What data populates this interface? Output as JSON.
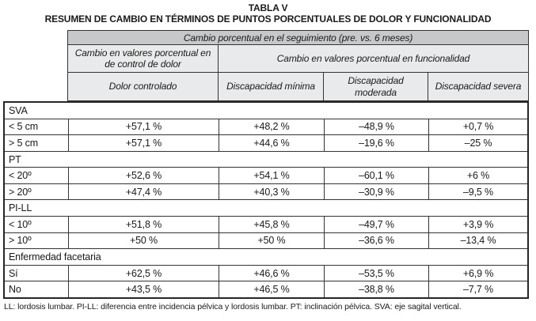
{
  "page": {
    "title": "TABLA V",
    "subtitle": "RESUMEN DE CAMBIO EN TÉRMINOS DE PUNTOS PORCENTUALES DE DOLOR Y FUNCIONALIDAD"
  },
  "table": {
    "banner": "Cambio porcentual en el seguimiento (pre. vs. 6 meses)",
    "group_headers": [
      "Cambio en valores porcentual en de control de dolor",
      "Cambio en valores porcentual en funcionalidad"
    ],
    "column_headers": [
      "Dolor controlado",
      "Discapacidad mínima",
      "Discapacidad moderada",
      "Discapacidad severa"
    ],
    "sections": [
      {
        "label": "SVA",
        "rows": [
          {
            "label": "< 5 cm",
            "values": [
              "+57,1 %",
              "+48,2 %",
              "–48,9 %",
              "+0,7 %"
            ]
          },
          {
            "label": "> 5 cm",
            "values": [
              "+57,1 %",
              "+44,6 %",
              "–19,6 %",
              "–25 %"
            ]
          }
        ]
      },
      {
        "label": "PT",
        "rows": [
          {
            "label": "< 20º",
            "values": [
              "+52,6 %",
              "+54,1 %",
              "–60,1 %",
              "+6 %"
            ]
          },
          {
            "label": "> 20º",
            "values": [
              "+47,4 %",
              "+40,3 %",
              "–30,9 %",
              "–9,5 %"
            ]
          }
        ]
      },
      {
        "label": "PI-LL",
        "rows": [
          {
            "label": "< 10º",
            "values": [
              "+51,8 %",
              "+45,8 %",
              "–49,7 %",
              "+3,9 %"
            ]
          },
          {
            "label": "> 10º",
            "values": [
              "+50 %",
              "+50 %",
              "–36,6 %",
              "–13,4 %"
            ]
          }
        ]
      },
      {
        "label": "Enfermedad facetaria",
        "rows": [
          {
            "label": "Sí",
            "values": [
              "+62,5 %",
              "+46,6 %",
              "–53,5 %",
              "+6,9 %"
            ]
          },
          {
            "label": "No",
            "values": [
              "+43,5 %",
              "+46,5 %",
              "–38,8 %",
              "–7,7 %"
            ]
          }
        ]
      }
    ]
  },
  "footnote": "LL: lordosis lumbar. PI-LL: diferencia entre incidencia pélvica y lordosis lumbar. PT: inclinación pélvica. SVA: eje sagital vertical.",
  "colors": {
    "banner_bg": "#c6c8ca",
    "header_bg": "#e9eaeb",
    "border": "#333333",
    "text": "#1a1a1a"
  }
}
